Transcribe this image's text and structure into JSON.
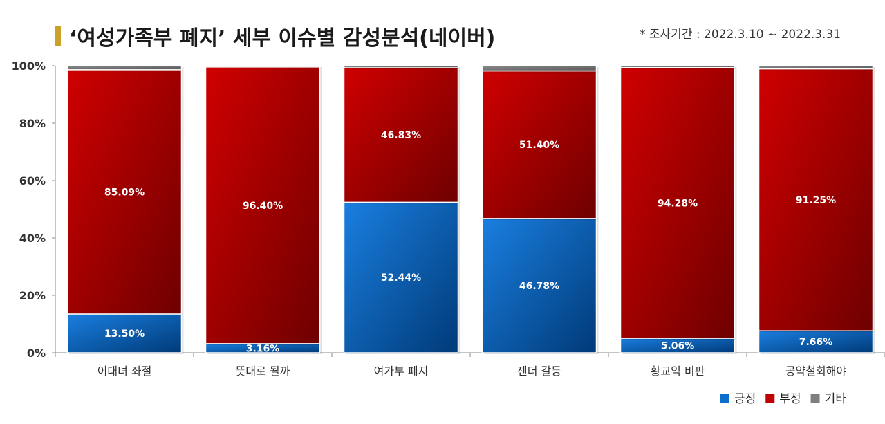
{
  "title": "‘여성가족부 폐지’ 세부 이슈별 감성분석(네이버)",
  "period": "* 조사기간 : 2022.3.10 ~ 2022.3.31",
  "chart_data": {
    "type": "bar",
    "stacked": true,
    "categories": [
      "이대녀 좌절",
      "뜻대로 될까",
      "여가부 폐지",
      "젠더 갈등",
      "황교익 비판",
      "공약철회해야"
    ],
    "series": [
      {
        "name": "긍정",
        "color": "#0b6fce",
        "values": [
          13.5,
          3.16,
          52.44,
          46.78,
          5.06,
          7.66
        ],
        "labels": [
          "13.50%",
          "3.16%",
          "52.44%",
          "46.78%",
          "5.06%",
          "7.66%"
        ]
      },
      {
        "name": "부정",
        "color": "#c00000",
        "values": [
          85.09,
          96.4,
          46.83,
          51.4,
          94.28,
          91.25
        ],
        "labels": [
          "85.09%",
          "96.40%",
          "46.83%",
          "51.40%",
          "94.28%",
          "91.25%"
        ]
      },
      {
        "name": "기타",
        "color": "#7f7f7f",
        "values": [
          1.41,
          0.44,
          0.73,
          1.82,
          0.66,
          1.09
        ],
        "labels": []
      }
    ],
    "yticks": [
      "0%",
      "20%",
      "40%",
      "60%",
      "80%",
      "100%"
    ],
    "ylim": [
      0,
      100
    ],
    "grid": false,
    "legend_position": "bottom-right"
  }
}
